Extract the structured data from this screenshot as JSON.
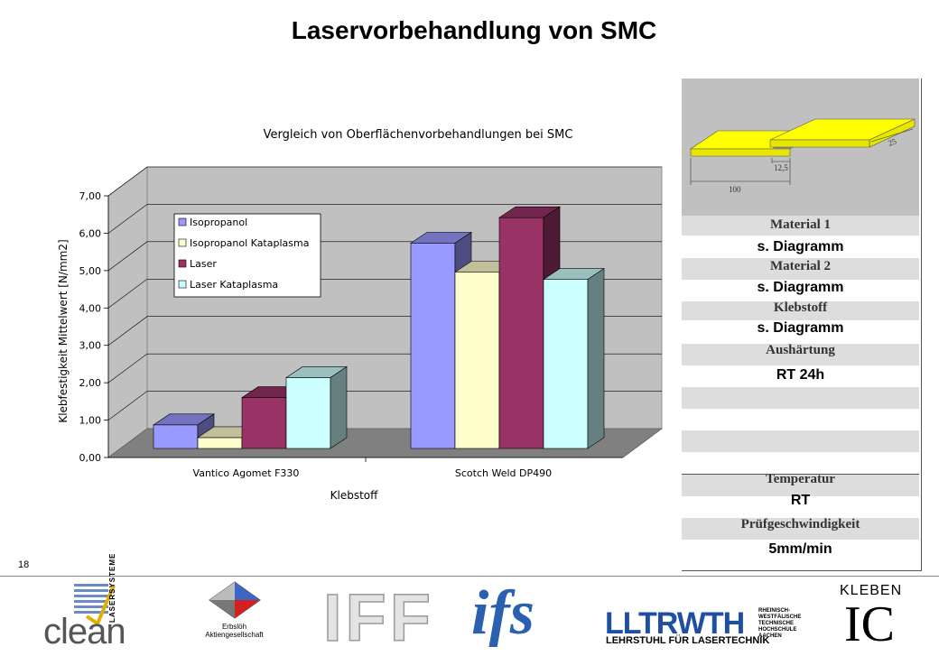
{
  "slide": {
    "title": "Laservorbehandlung von SMC",
    "page_number": "18"
  },
  "chart_data": {
    "type": "bar",
    "title": "Vergleich von Oberflächenvorbehandlungen bei SMC",
    "xlabel": "Klebstoff",
    "ylabel": "Klebfestigkeit Mittelwert [N/mm2]",
    "ylim": [
      0,
      7
    ],
    "yticks": [
      "0,00",
      "1,00",
      "2,00",
      "3,00",
      "4,00",
      "5,00",
      "6,00",
      "7,00"
    ],
    "categories": [
      "Vantico Agomet F330",
      "Scotch Weld DP490"
    ],
    "series": [
      {
        "name": "Isopropanol",
        "values": [
          0.65,
          5.65
        ],
        "color": "#9999ff"
      },
      {
        "name": "Isopropanol Kataplasma",
        "values": [
          0.3,
          4.85
        ],
        "color": "#ffffcc"
      },
      {
        "name": "Laser",
        "values": [
          1.4,
          6.35
        ],
        "color": "#993366"
      },
      {
        "name": "Laser Kataplasma",
        "values": [
          1.95,
          4.65
        ],
        "color": "#ccffff"
      }
    ],
    "grid": true,
    "legend_position": "top-left"
  },
  "specimen": {
    "dim_overlap": "12,5",
    "dim_width": "25",
    "dim_length": "100"
  },
  "side_panel": {
    "material1_label": "Material 1",
    "material1_value": "s. Diagramm",
    "material2_label": "Material 2",
    "material2_value": "s. Diagramm",
    "adhesive_label": "Klebstoff",
    "adhesive_value": "s. Diagramm",
    "curing_label": "Aushärtung",
    "curing_value": "RT 24h",
    "temperature_label": "Temperatur",
    "temperature_value": "RT",
    "speed_label": "Prüfgeschwindigkeit",
    "speed_value": "5mm/min"
  },
  "footer": {
    "clean_logo": "clean",
    "clean_sub": "LASERSYSTEME",
    "erbsloeh_line1": "Erbslöh",
    "erbsloeh_line2": "Aktiengesellschaft",
    "iff_logo": "IFF",
    "ifs_logo": "ifs",
    "llt_logo": "LLTRWTH",
    "rwth_line1": "RHEINISCH-",
    "rwth_line2": "WESTFÄLISCHE",
    "rwth_line3": "TECHNISCHE",
    "rwth_line4": "HOCHSCHULE",
    "rwth_line5": "AACHEN",
    "llt_sub": "LEHRSTUHL FÜR LASERTECHNIK",
    "kleben_logo": "KLEBEN",
    "ic_logo": "IC"
  }
}
